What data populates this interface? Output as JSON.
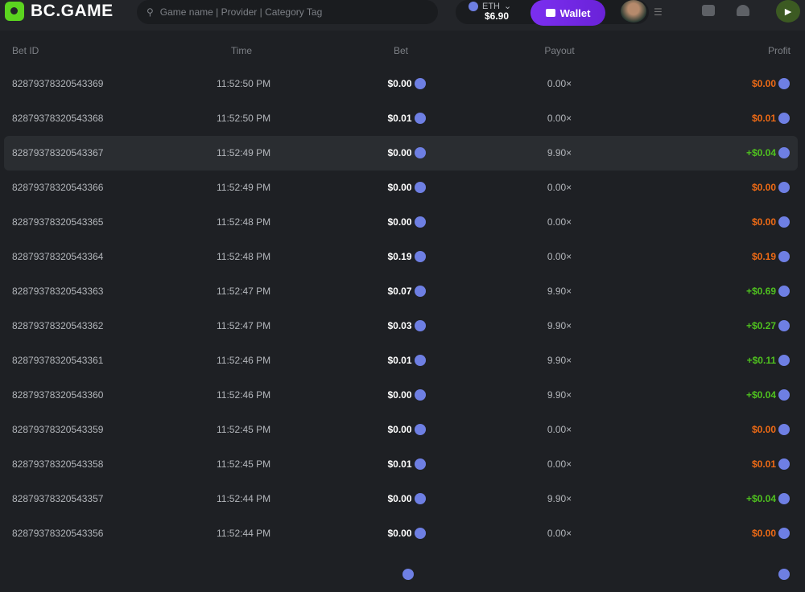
{
  "header": {
    "brand": "BC.GAME",
    "search_placeholder": "Game name | Provider | Category Tag",
    "currency": "ETH",
    "balance": "$6.90",
    "wallet_label": "Wallet"
  },
  "table": {
    "columns": [
      "Bet ID",
      "Time",
      "Bet",
      "Payout",
      "Profit"
    ],
    "rows": [
      [
        "82879378320543369",
        "11:52:50 PM",
        "$0.00",
        "0.00×",
        "$0.00",
        "loss"
      ],
      [
        "82879378320543368",
        "11:52:50 PM",
        "$0.01",
        "0.00×",
        "$0.01",
        "loss"
      ],
      [
        "82879378320543367",
        "11:52:49 PM",
        "$0.00",
        "9.90×",
        "+$0.04",
        "win"
      ],
      [
        "82879378320543366",
        "11:52:49 PM",
        "$0.00",
        "0.00×",
        "$0.00",
        "loss"
      ],
      [
        "82879378320543365",
        "11:52:48 PM",
        "$0.00",
        "0.00×",
        "$0.00",
        "loss"
      ],
      [
        "82879378320543364",
        "11:52:48 PM",
        "$0.19",
        "0.00×",
        "$0.19",
        "loss"
      ],
      [
        "82879378320543363",
        "11:52:47 PM",
        "$0.07",
        "9.90×",
        "+$0.69",
        "win"
      ],
      [
        "82879378320543362",
        "11:52:47 PM",
        "$0.03",
        "9.90×",
        "+$0.27",
        "win"
      ],
      [
        "82879378320543361",
        "11:52:46 PM",
        "$0.01",
        "9.90×",
        "+$0.11",
        "win"
      ],
      [
        "82879378320543360",
        "11:52:46 PM",
        "$0.00",
        "9.90×",
        "+$0.04",
        "win"
      ],
      [
        "82879378320543359",
        "11:52:45 PM",
        "$0.00",
        "0.00×",
        "$0.00",
        "loss"
      ],
      [
        "82879378320543358",
        "11:52:45 PM",
        "$0.01",
        "0.00×",
        "$0.01",
        "loss"
      ],
      [
        "82879378320543357",
        "11:52:44 PM",
        "$0.00",
        "9.90×",
        "+$0.04",
        "win"
      ],
      [
        "82879378320543356",
        "11:52:44 PM",
        "$0.00",
        "0.00×",
        "$0.00",
        "loss"
      ]
    ]
  },
  "colors": {
    "accent": "#7b2ff0",
    "brand": "#5bd41f",
    "loss": "#ee6a15",
    "win": "#4fc11f",
    "coin": "#6e7fe3"
  }
}
